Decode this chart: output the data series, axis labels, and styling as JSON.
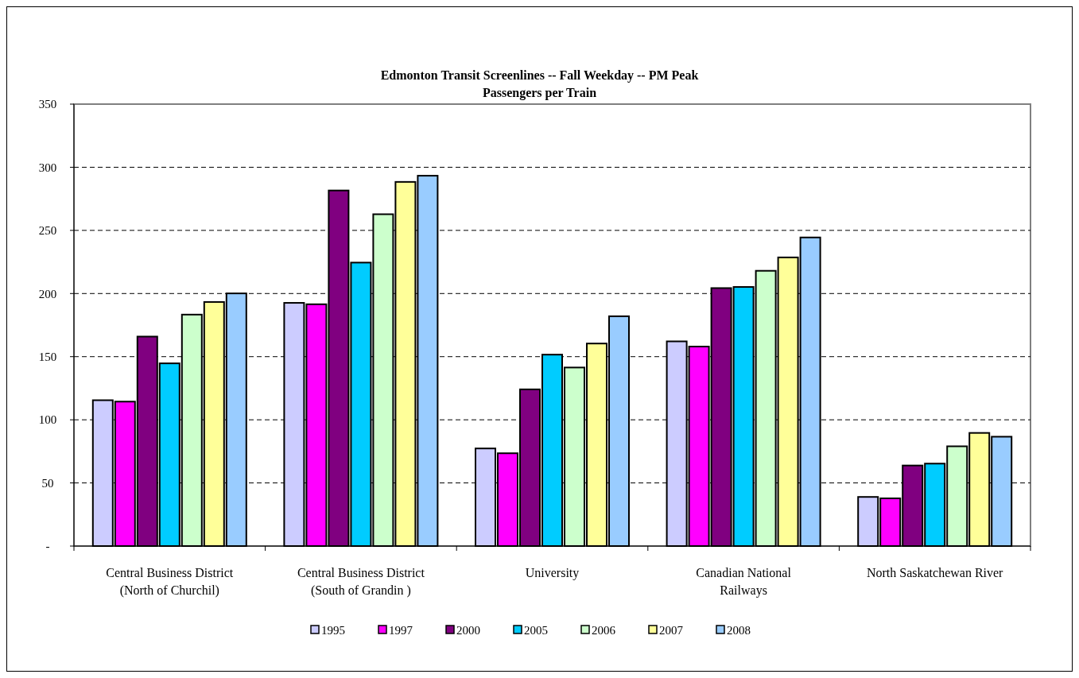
{
  "chart_data": {
    "type": "bar",
    "title": "Edmonton Transit Screenlines -- Fall Weekday -- PM Peak",
    "subtitle": "Passengers per Train",
    "categories": [
      "Central Business District\n(North of Churchil)",
      "Central Business District\n(South of Grandin )",
      "University",
      "Canadian National\nRailways",
      "North Saskatchewan River"
    ],
    "series": [
      {
        "name": "1995",
        "color": "#ccccff",
        "values": [
          115.5,
          192.6,
          77.3,
          162.1,
          38.9
        ]
      },
      {
        "name": "1997",
        "color": "#ff00ff",
        "values": [
          114.4,
          191.5,
          73.5,
          158.0,
          37.8
        ]
      },
      {
        "name": "2000",
        "color": "#800080",
        "values": [
          165.9,
          281.6,
          124.1,
          204.3,
          63.8
        ]
      },
      {
        "name": "2005",
        "color": "#00ccff",
        "values": [
          144.7,
          224.5,
          151.6,
          205.2,
          65.3
        ]
      },
      {
        "name": "2006",
        "color": "#ccffcc",
        "values": [
          183.3,
          262.8,
          141.4,
          218.0,
          79.0
        ]
      },
      {
        "name": "2007",
        "color": "#ffff99",
        "values": [
          193.3,
          288.4,
          160.4,
          228.6,
          89.6
        ]
      },
      {
        "name": "2008",
        "color": "#99ccff",
        "values": [
          200.1,
          293.3,
          182.0,
          244.4,
          86.6
        ]
      }
    ],
    "ylim": [
      0,
      350
    ],
    "yticks": [
      {
        "value": 0,
        "label": "-"
      },
      50,
      100,
      150,
      200,
      250,
      300,
      350
    ],
    "grid": "y",
    "legend": "bottom"
  }
}
